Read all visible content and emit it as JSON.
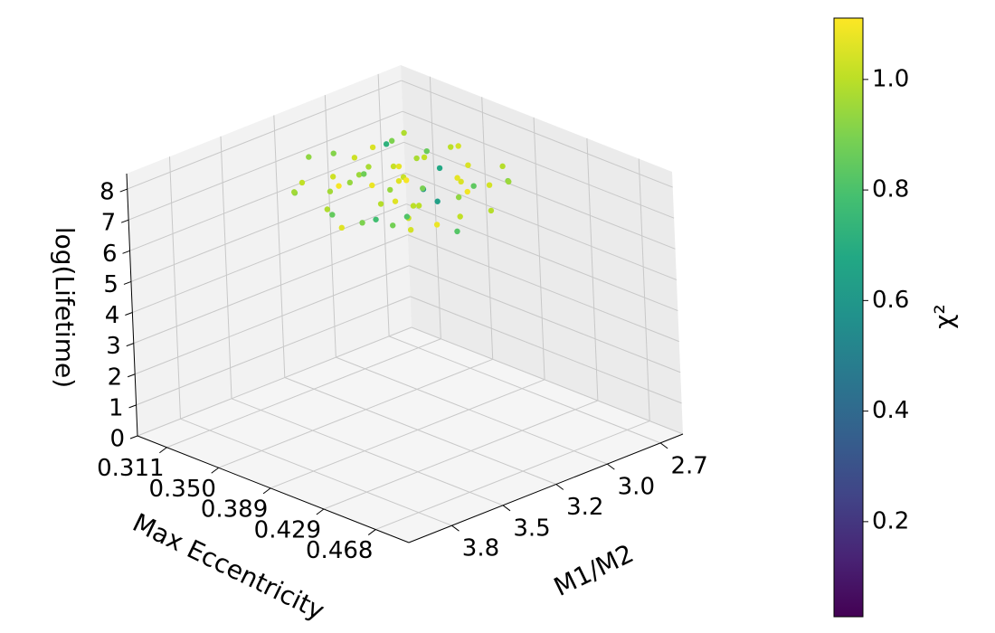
{
  "chart_data": {
    "type": "scatter3d",
    "x_label": "M1/M2",
    "y_label": "Max Eccentricity",
    "z_label": "log(Lifetime)",
    "colorbar_label": "χ²",
    "colormap": "viridis",
    "grid": true,
    "xlim": [
      2.62,
      3.96
    ],
    "ylim": [
      0.289,
      0.493
    ],
    "zlim": [
      0,
      8.5
    ],
    "clim": [
      0.028,
      1.111
    ],
    "xticks": [
      {
        "value": 2.73,
        "label": "2.7"
      },
      {
        "value": 2.99,
        "label": "3.0"
      },
      {
        "value": 3.24,
        "label": "3.2"
      },
      {
        "value": 3.5,
        "label": "3.5"
      },
      {
        "value": 3.75,
        "label": "3.8"
      }
    ],
    "yticks": [
      0.311,
      {
        "value": 0.35,
        "label": "0.350"
      },
      0.389,
      0.429,
      0.468
    ],
    "zticks": [
      0,
      1,
      2,
      3,
      4,
      5,
      6,
      7,
      8
    ],
    "cticks": [
      0.2,
      0.4,
      0.6,
      0.8,
      {
        "value": 1,
        "label": "1.0"
      }
    ],
    "x": [
      2.95,
      3.1,
      2.8,
      3.2,
      2.75,
      3.05,
      2.9,
      3.25,
      2.7,
      3.0,
      3.3,
      2.85,
      3.15,
      2.68,
      2.98,
      3.12,
      2.82,
      3.22,
      2.93,
      3.08,
      2.78,
      3.18,
      2.88,
      3.28,
      2.72,
      3.02,
      2.96,
      3.14,
      2.84,
      3.35,
      2.66,
      3.06,
      2.92,
      3.24,
      2.76,
      3.04,
      2.86,
      3.16,
      2.99,
      3.32,
      2.74,
      3.1,
      2.94,
      3.2,
      2.81,
      3.0,
      2.9,
      3.26,
      2.7,
      3.08,
      2.87,
      3.13,
      2.97,
      3.19,
      2.79,
      3.03,
      2.91,
      3.29,
      2.77,
      3.07
    ],
    "y": [
      0.34,
      0.33,
      0.36,
      0.37,
      0.31,
      0.38,
      0.32,
      0.31,
      0.38,
      0.35,
      0.34,
      0.39,
      0.3,
      0.34,
      0.37,
      0.36,
      0.33,
      0.35,
      0.3,
      0.4,
      0.35,
      0.32,
      0.37,
      0.37,
      0.32,
      0.31,
      0.39,
      0.34,
      0.3,
      0.32,
      0.37,
      0.36,
      0.35,
      0.39,
      0.39,
      0.33,
      0.34,
      0.38,
      0.32,
      0.35,
      0.36,
      0.31,
      0.38,
      0.33,
      0.31,
      0.39,
      0.36,
      0.33,
      0.35,
      0.35,
      0.32,
      0.37,
      0.34,
      0.36,
      0.38,
      0.3,
      0.33,
      0.31,
      0.33,
      0.37
    ],
    "z": [
      6.6,
      6.9,
      6.4,
      6.2,
      7.0,
      6.0,
      7.2,
      6.7,
      6.5,
      6.8,
      6.3,
      6.1,
      7.1,
      6.9,
      6.4,
      6.6,
      6.7,
      6.0,
      6.5,
      6.2,
      7.3,
      6.4,
      6.9,
      6.6,
      6.3,
      6.1,
      7.0,
      7.2,
      6.6,
      6.8,
      6.7,
      5.9,
      6.3,
      6.5,
      6.8,
      6.4,
      6.0,
      6.9,
      6.7,
      6.1,
      6.1,
      6.5,
      6.6,
      6.8,
      6.9,
      6.3,
      7.1,
      6.2,
      6.5,
      6.7,
      6.4,
      6.3,
      7.0,
      6.7,
      6.6,
      6.9,
      6.2,
      6.5,
      6.8,
      6.5
    ],
    "c": [
      1.02,
      0.95,
      1.05,
      0.88,
      0.98,
      1.08,
      0.72,
      1.01,
      0.91,
      1.1,
      0.85,
      0.99,
      0.93,
      1.04,
      0.64,
      1.06,
      0.97,
      0.9,
      1.03,
      0.82,
      1.0,
      0.96,
      1.07,
      0.78,
      1.01,
      0.94,
      1.09,
      0.87,
      1.05,
      0.92,
      0.99,
      1.02,
      0.58,
      1.04,
      0.95,
      1.08,
      0.89,
      1.0,
      0.97,
      1.06,
      0.84,
      1.03,
      0.93,
      1.1,
      0.9,
      1.01,
      0.68,
      0.98,
      1.05,
      0.94,
      1.02,
      0.81,
      1.07,
      0.99,
      1.04,
      0.91,
      1.06,
      0.96,
      0.86,
      1.0
    ]
  }
}
